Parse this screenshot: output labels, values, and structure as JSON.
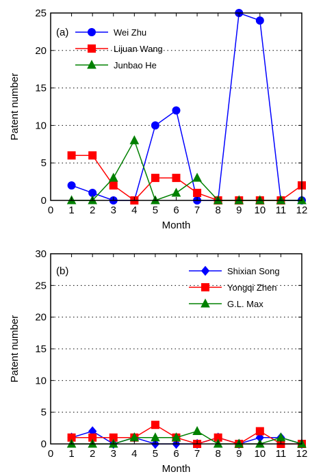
{
  "chart_data": [
    {
      "type": "line",
      "panel_label": "(a)",
      "xlabel": "Month",
      "ylabel": "Patent number",
      "xlim": [
        0,
        12
      ],
      "ylim": [
        0,
        25
      ],
      "xticks": [
        0,
        1,
        2,
        3,
        4,
        5,
        6,
        7,
        8,
        9,
        10,
        11,
        12
      ],
      "yticks": [
        0,
        5,
        10,
        15,
        20,
        25
      ],
      "grid": "dotted-horizontal",
      "legend": "top-left",
      "x": [
        1,
        2,
        3,
        4,
        5,
        6,
        7,
        8,
        9,
        10,
        11,
        12
      ],
      "series": [
        {
          "name": "Wei Zhu",
          "color": "#0000ff",
          "marker": "circle",
          "values": [
            2,
            1,
            0,
            0,
            10,
            12,
            0,
            0,
            25,
            24,
            0,
            0
          ]
        },
        {
          "name": " Lijuan Wang",
          "color": "#ff0000",
          "marker": "square",
          "values": [
            6,
            6,
            2,
            0,
            3,
            3,
            1,
            0,
            0,
            0,
            0,
            2
          ]
        },
        {
          "name": "Junbao He",
          "color": "#008000",
          "marker": "triangle",
          "values": [
            0,
            0,
            3,
            8,
            0,
            1,
            3,
            0,
            0,
            0,
            0,
            0
          ]
        }
      ]
    },
    {
      "type": "line",
      "panel_label": "(b)",
      "xlabel": "Month",
      "ylabel": "Patent number",
      "xlim": [
        0,
        12
      ],
      "ylim": [
        0,
        30
      ],
      "xticks": [
        0,
        1,
        2,
        3,
        4,
        5,
        6,
        7,
        8,
        9,
        10,
        11,
        12
      ],
      "yticks": [
        0,
        5,
        10,
        15,
        20,
        25,
        30
      ],
      "grid": "dotted-horizontal",
      "legend": "top-right",
      "x": [
        1,
        2,
        3,
        4,
        5,
        6,
        7,
        8,
        9,
        10,
        11,
        12
      ],
      "series": [
        {
          "name": "Shixian Song",
          "color": "#0000ff",
          "marker": "diamond",
          "values": [
            1,
            2,
            0,
            1,
            0,
            0,
            0,
            1,
            0,
            1,
            1,
            0
          ]
        },
        {
          "name": "Yongqi Zhen",
          "color": "#ff0000",
          "marker": "square",
          "values": [
            1,
            1,
            1,
            1,
            3,
            1,
            0,
            1,
            0,
            2,
            0,
            0
          ]
        },
        {
          "name": "G.L. Max",
          "color": "#008000",
          "marker": "triangle",
          "values": [
            0,
            0,
            0,
            1,
            1,
            1,
            2,
            0,
            0,
            0,
            1,
            0
          ]
        }
      ]
    }
  ]
}
